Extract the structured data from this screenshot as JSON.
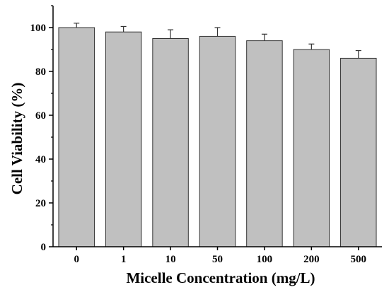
{
  "chart_data": {
    "type": "bar",
    "categories": [
      "0",
      "1",
      "10",
      "50",
      "100",
      "200",
      "500"
    ],
    "values": [
      100,
      98,
      95,
      96,
      94,
      90,
      86
    ],
    "errors": [
      2,
      2.5,
      4,
      4,
      3,
      2.5,
      3.5
    ],
    "xlabel": "Micelle Concentration (mg/L)",
    "ylabel": "Cell Viability (%)",
    "ylim": [
      0,
      110
    ],
    "yticks": [
      0,
      20,
      40,
      60,
      80,
      100
    ],
    "grid": false,
    "colors": {
      "bar_fill": "#c0c0c0",
      "bar_stroke": "#333333",
      "axis": "#000000"
    }
  }
}
